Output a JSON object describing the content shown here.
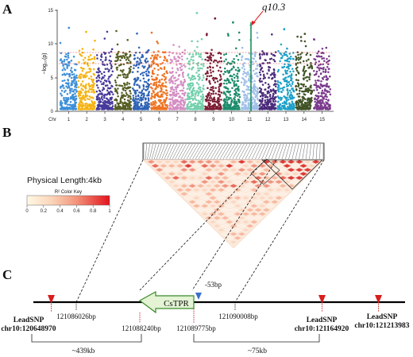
{
  "panel_a": {
    "letter": "A",
    "annotation": "q10.3",
    "y_axis_label": "−log₁₀(p)",
    "y_ticks": [
      "0",
      "5",
      "10",
      "15"
    ],
    "chr_label": "Chr",
    "chromosomes": [
      "1",
      "2",
      "3",
      "4",
      "5",
      "6",
      "7",
      "8",
      "9",
      "10",
      "11",
      "12",
      "13",
      "14",
      "15"
    ],
    "colors": [
      "#3d8fd8",
      "#f5b414",
      "#46399a",
      "#565e25",
      "#2e63b5",
      "#ee7322",
      "#d48ec3",
      "#72d0ac",
      "#7c1d33",
      "#1e8c6c",
      "#9fc0e8",
      "#4a2a7a",
      "#1da0c8",
      "#405226",
      "#7a3a8c"
    ]
  },
  "panel_b": {
    "letter": "B",
    "physical_length": "Physical Length:4kb",
    "color_key_title": "R² Color Key",
    "color_key_ticks": [
      "0",
      "0.2",
      "0.4",
      "0.6",
      "0.8",
      "1"
    ]
  },
  "panel_c": {
    "letter": "C",
    "gene_name": "CsTPR",
    "promoter_label": "-53bp",
    "pos_1": "121086026bp",
    "pos_2": "121088240bp",
    "pos_3": "121089775bp",
    "pos_4": "121090008bp",
    "lead_snp_1_title": "LeadSNP",
    "lead_snp_1_pos": "chr10:120648970",
    "lead_snp_2_title": "LeadSNP",
    "lead_snp_2_pos": "chr10:121164920",
    "lead_snp_3_title": "LeadSNP",
    "lead_snp_3_pos": "chr10:121213983",
    "distance_1": "~439kb",
    "distance_2": "~75kb"
  }
}
